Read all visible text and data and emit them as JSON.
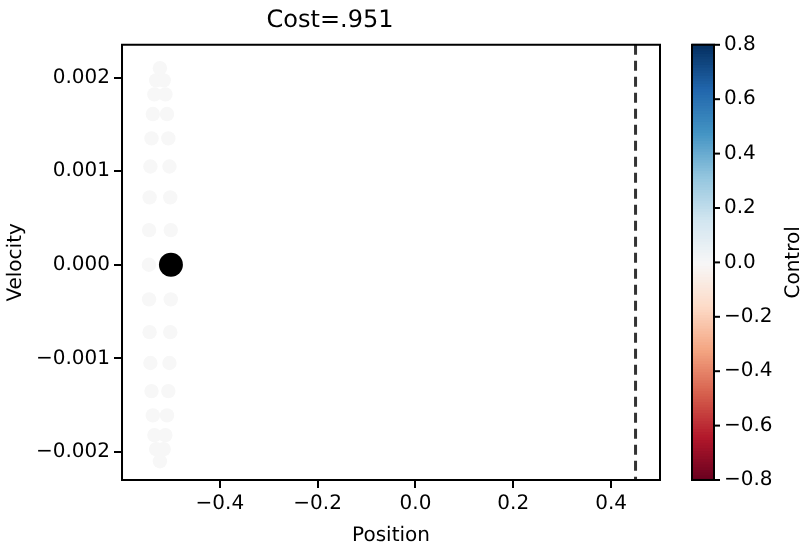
{
  "chart_data": {
    "type": "scatter",
    "title": "Cost=.951",
    "xlabel": "Position",
    "ylabel": "Velocity",
    "clabel": "Control",
    "xlim": [
      -0.6,
      0.5
    ],
    "xticks": [
      {
        "value": -0.4,
        "label": "−0.4"
      },
      {
        "value": -0.2,
        "label": "−0.2"
      },
      {
        "value": 0,
        "label": "0.0"
      },
      {
        "value": 0.2,
        "label": "0.2"
      },
      {
        "value": 0.4,
        "label": "0.4"
      }
    ],
    "ylim": [
      -0.0023,
      0.00235
    ],
    "yticks": [
      {
        "value": -0.002,
        "label": "−0.002"
      },
      {
        "value": -0.001,
        "label": "−0.001"
      },
      {
        "value": 0,
        "label": "0.000"
      },
      {
        "value": 0.001,
        "label": "0.001"
      },
      {
        "value": 0.002,
        "label": "0.002"
      }
    ],
    "clim": [
      -0.8,
      0.8
    ],
    "cticks": [
      {
        "value": -0.8,
        "label": "−0.8"
      },
      {
        "value": -0.6,
        "label": "−0.6"
      },
      {
        "value": -0.4,
        "label": "−0.4"
      },
      {
        "value": -0.2,
        "label": "−0.2"
      },
      {
        "value": 0,
        "label": "0.0"
      },
      {
        "value": 0.2,
        "label": "0.2"
      },
      {
        "value": 0.4,
        "label": "0.4"
      },
      {
        "value": 0.6,
        "label": "0.6"
      },
      {
        "value": 0.8,
        "label": "0.8"
      }
    ],
    "grid": false,
    "legend": false,
    "marker": "circle",
    "ref_lines": [
      {
        "axis": "x",
        "value": 0.45,
        "color": "#333333",
        "line_style": "dashed"
      }
    ],
    "series": [
      {
        "type": "scatter",
        "x": [
          -0.5003,
          -0.5014,
          -0.503,
          -0.5053,
          -0.508,
          -0.5113,
          -0.5148,
          -0.5225,
          -0.5302,
          -0.5338,
          -0.537,
          -0.5397,
          -0.542,
          -0.5436,
          -0.5447,
          -0.545,
          -0.5447,
          -0.5436,
          -0.542,
          -0.5397,
          -0.537,
          -0.5338,
          -0.5302,
          -0.5225,
          -0.5148,
          -0.5113,
          -0.508,
          -0.5053,
          -0.503,
          -0.5014,
          -0.5003
        ],
        "values": [
          -0.00037,
          -0.00072,
          -0.00105,
          -0.00135,
          -0.00161,
          -0.00182,
          -0.00197,
          -0.0021,
          -0.00197,
          -0.00182,
          -0.00161,
          -0.00135,
          -0.00105,
          -0.00072,
          -0.00037,
          0,
          0.00037,
          0.00072,
          0.00105,
          0.00135,
          0.00161,
          0.00182,
          0.00197,
          0.0021,
          0.00197,
          0.00182,
          0.00161,
          0.00135,
          0.00105,
          0.00072,
          0.00037
        ],
        "cvalues": [
          0,
          0,
          0,
          0,
          0,
          0,
          0,
          0,
          0,
          0,
          0,
          0,
          0,
          0,
          0,
          0,
          0,
          0,
          0,
          0,
          0,
          0,
          0,
          0,
          0,
          0,
          0,
          0,
          0,
          0,
          0
        ]
      },
      {
        "type": "scatter",
        "x": [
          -0.5
        ],
        "values": [
          0
        ],
        "color": "#000000"
      }
    ]
  }
}
